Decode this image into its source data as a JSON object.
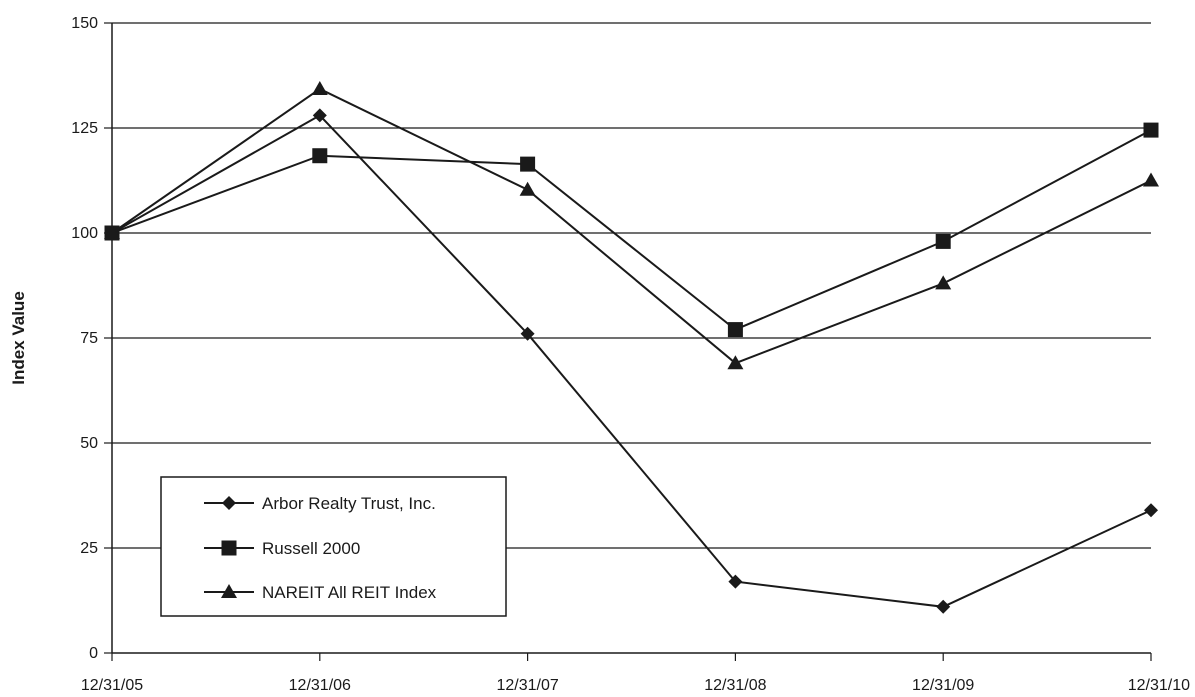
{
  "chart_data": {
    "type": "line",
    "title": "",
    "xlabel": "",
    "ylabel": "Index Value",
    "categories": [
      "12/31/05",
      "12/31/06",
      "12/31/07",
      "12/31/08",
      "12/31/09",
      "12/31/10"
    ],
    "yticks": [
      "0",
      "25",
      "50",
      "75",
      "100",
      "125",
      "150"
    ],
    "ylim": [
      0,
      150
    ],
    "grid": true,
    "legend_position": "bottom-left",
    "series": [
      {
        "name": "Arbor Realty Trust, Inc.",
        "marker": "diamond",
        "values": [
          100,
          128,
          76,
          17,
          11,
          34
        ]
      },
      {
        "name": "Russell 2000",
        "marker": "square",
        "values": [
          100,
          118.4,
          116.4,
          77,
          98,
          124.5
        ]
      },
      {
        "name": "NAREIT All REIT Index",
        "marker": "triangle",
        "values": [
          100,
          134.3,
          110.3,
          69,
          88,
          112.5
        ]
      }
    ],
    "colors": {
      "line": "#1a1a1a",
      "grid": "#1a1a1a",
      "background": "#ffffff"
    }
  }
}
